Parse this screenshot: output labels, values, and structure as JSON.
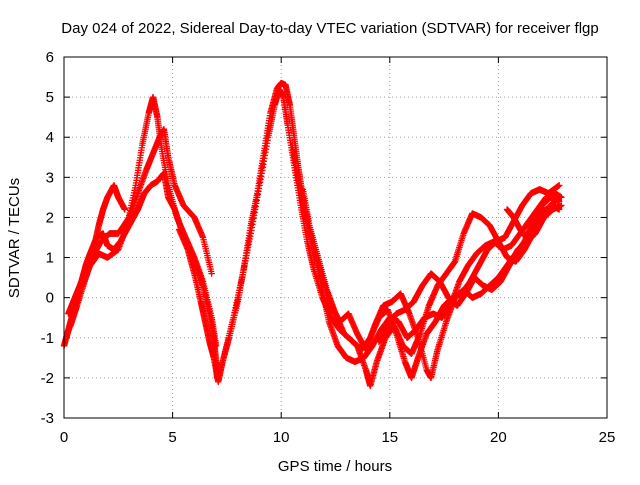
{
  "chart_data": {
    "type": "scatter",
    "title": "Day 024 of 2022, Sidereal Day-to-day VTEC variation (SDTVAR) for receiver flgp",
    "xlabel": "GPS time / hours",
    "ylabel": "SDTVAR / TECUs",
    "xlim": [
      0,
      25
    ],
    "ylim": [
      -3,
      6
    ],
    "xticks": [
      0,
      5,
      10,
      15,
      20,
      25
    ],
    "yticks": [
      -3,
      -2,
      -1,
      0,
      1,
      2,
      3,
      4,
      5,
      6
    ],
    "xtick_labels": [
      "0",
      "5",
      "10",
      "15",
      "20",
      "25"
    ],
    "ytick_labels": [
      "-3",
      "-2",
      "-1",
      "0",
      "1",
      "2",
      "3",
      "4",
      "5",
      "6"
    ],
    "grid": true,
    "marker": "+",
    "legend": "none",
    "series": [
      {
        "name": "satellite tracks",
        "color": "#ff0000",
        "tracks": [
          [
            [
              0.0,
              -1.2
            ],
            [
              0.2,
              -0.8
            ],
            [
              0.4,
              -0.4
            ],
            [
              0.6,
              0.0
            ],
            [
              0.8,
              0.4
            ],
            [
              1.0,
              0.8
            ],
            [
              1.2,
              1.1
            ],
            [
              1.5,
              1.5
            ],
            [
              1.8,
              1.6
            ],
            [
              2.0,
              1.3
            ],
            [
              2.3,
              1.2
            ],
            [
              2.6,
              1.4
            ],
            [
              3.0,
              1.8
            ],
            [
              3.4,
              2.2
            ],
            [
              3.7,
              2.6
            ],
            [
              4.0,
              2.8
            ],
            [
              4.3,
              2.9
            ],
            [
              4.6,
              3.1
            ],
            [
              4.8,
              2.5
            ],
            [
              5.1,
              2.2
            ],
            [
              5.4,
              1.7
            ],
            [
              5.8,
              1.2
            ],
            [
              6.1,
              0.8
            ],
            [
              6.4,
              0.3
            ],
            [
              6.7,
              -0.4
            ],
            [
              6.9,
              -1.0
            ],
            [
              7.0,
              -1.6
            ],
            [
              7.05,
              -2.0
            ]
          ],
          [
            [
              0.2,
              -0.4
            ],
            [
              0.5,
              0.0
            ],
            [
              0.8,
              0.4
            ],
            [
              1.1,
              0.9
            ],
            [
              1.4,
              1.3
            ],
            [
              1.6,
              1.8
            ],
            [
              1.8,
              2.2
            ],
            [
              2.0,
              2.5
            ],
            [
              2.3,
              2.8
            ],
            [
              2.5,
              2.5
            ],
            [
              2.8,
              2.2
            ]
          ],
          [
            [
              0.3,
              -0.7
            ],
            [
              0.6,
              -0.2
            ],
            [
              1.0,
              0.5
            ],
            [
              1.3,
              1.0
            ],
            [
              1.7,
              1.4
            ],
            [
              2.1,
              1.6
            ],
            [
              2.5,
              1.6
            ],
            [
              3.0,
              2.0
            ],
            [
              3.4,
              2.6
            ],
            [
              3.8,
              3.2
            ],
            [
              4.1,
              3.6
            ],
            [
              4.4,
              4.0
            ],
            [
              4.6,
              4.2
            ],
            [
              4.8,
              3.5
            ],
            [
              5.1,
              2.8
            ],
            [
              5.5,
              2.3
            ],
            [
              6.0,
              2.0
            ],
            [
              6.4,
              1.5
            ],
            [
              6.8,
              0.6
            ]
          ],
          [
            [
              0.1,
              -1.0
            ],
            [
              0.4,
              -0.5
            ],
            [
              0.8,
              0.2
            ],
            [
              1.2,
              0.8
            ],
            [
              1.6,
              1.1
            ],
            [
              2.0,
              1.0
            ],
            [
              2.5,
              1.2
            ],
            [
              2.9,
              1.8
            ],
            [
              3.3,
              2.8
            ],
            [
              3.6,
              3.8
            ],
            [
              3.9,
              4.6
            ],
            [
              4.1,
              5.0
            ],
            [
              4.3,
              4.5
            ],
            [
              4.5,
              3.7
            ],
            [
              4.8,
              2.8
            ],
            [
              5.2,
              2.0
            ],
            [
              5.6,
              1.5
            ],
            [
              6.0,
              1.0
            ],
            [
              6.4,
              0.4
            ],
            [
              6.8,
              -0.5
            ],
            [
              7.0,
              -1.2
            ]
          ],
          [
            [
              5.3,
              1.7
            ],
            [
              5.7,
              1.2
            ],
            [
              6.0,
              0.6
            ],
            [
              6.3,
              -0.1
            ],
            [
              6.5,
              -0.6
            ],
            [
              6.7,
              -1.1
            ],
            [
              6.9,
              -1.5
            ],
            [
              7.1,
              -2.1
            ],
            [
              7.3,
              -1.6
            ],
            [
              7.6,
              -1.0
            ],
            [
              8.0,
              -0.1
            ],
            [
              8.3,
              0.8
            ],
            [
              8.6,
              1.8
            ],
            [
              8.9,
              2.6
            ],
            [
              9.2,
              3.6
            ],
            [
              9.5,
              4.6
            ],
            [
              9.8,
              5.2
            ],
            [
              10.0,
              5.35
            ],
            [
              10.2,
              5.3
            ],
            [
              10.4,
              4.8
            ],
            [
              10.6,
              4.0
            ],
            [
              10.8,
              3.2
            ],
            [
              11.0,
              2.5
            ],
            [
              11.3,
              1.7
            ],
            [
              11.6,
              1.0
            ],
            [
              11.9,
              0.2
            ],
            [
              12.2,
              -0.6
            ],
            [
              12.6,
              -1.2
            ],
            [
              13.0,
              -1.5
            ],
            [
              13.4,
              -1.6
            ],
            [
              13.8,
              -1.5
            ],
            [
              14.2,
              -1.2
            ],
            [
              14.6,
              -0.8
            ],
            [
              15.0,
              -0.5
            ],
            [
              15.4,
              -0.6
            ],
            [
              15.8,
              -1.0
            ],
            [
              16.2,
              -0.8
            ],
            [
              16.6,
              -0.5
            ],
            [
              17.0,
              -0.4
            ],
            [
              17.4,
              -0.5
            ],
            [
              17.8,
              -0.2
            ],
            [
              18.2,
              0.4
            ],
            [
              18.6,
              0.8
            ],
            [
              19.0,
              1.1
            ],
            [
              19.4,
              1.3
            ],
            [
              19.8,
              1.4
            ],
            [
              20.2,
              1.2
            ],
            [
              20.6,
              1.3
            ],
            [
              21.0,
              1.6
            ],
            [
              21.4,
              1.9
            ],
            [
              21.8,
              2.2
            ],
            [
              22.2,
              2.5
            ],
            [
              22.6,
              2.6
            ],
            [
              22.9,
              2.5
            ]
          ],
          [
            [
              7.4,
              -1.4
            ],
            [
              7.8,
              -0.5
            ],
            [
              8.2,
              0.5
            ],
            [
              8.6,
              1.6
            ],
            [
              9.0,
              2.8
            ],
            [
              9.4,
              4.0
            ],
            [
              9.7,
              4.8
            ],
            [
              9.9,
              5.2
            ],
            [
              10.1,
              5.0
            ],
            [
              10.3,
              4.3
            ],
            [
              10.6,
              3.3
            ],
            [
              10.9,
              2.3
            ],
            [
              11.2,
              1.4
            ],
            [
              11.5,
              0.7
            ],
            [
              11.9,
              0.0
            ],
            [
              12.3,
              -0.5
            ],
            [
              12.7,
              -0.8
            ],
            [
              13.1,
              -1.0
            ],
            [
              13.5,
              -1.2
            ],
            [
              13.9,
              -1.8
            ],
            [
              14.1,
              -2.2
            ],
            [
              14.4,
              -1.6
            ],
            [
              14.8,
              -1.0
            ],
            [
              15.2,
              -0.7
            ],
            [
              15.6,
              -1.2
            ],
            [
              16.0,
              -1.4
            ],
            [
              16.4,
              -0.9
            ],
            [
              16.8,
              -0.2
            ],
            [
              17.2,
              0.3
            ],
            [
              17.6,
              0.6
            ],
            [
              18.0,
              0.9
            ],
            [
              18.4,
              1.6
            ],
            [
              18.8,
              2.1
            ],
            [
              19.2,
              2.0
            ],
            [
              19.6,
              1.8
            ],
            [
              20.0,
              1.4
            ],
            [
              20.4,
              1.0
            ],
            [
              20.8,
              0.9
            ],
            [
              21.2,
              1.2
            ],
            [
              21.6,
              1.6
            ],
            [
              22.0,
              2.0
            ],
            [
              22.4,
              2.3
            ],
            [
              22.8,
              2.5
            ]
          ],
          [
            [
              10.5,
              3.8
            ],
            [
              10.8,
              2.9
            ],
            [
              11.1,
              2.0
            ],
            [
              11.5,
              1.2
            ],
            [
              11.9,
              0.5
            ],
            [
              12.3,
              -0.2
            ],
            [
              12.7,
              -0.6
            ],
            [
              13.1,
              -0.4
            ],
            [
              13.5,
              -0.9
            ],
            [
              13.9,
              -1.3
            ],
            [
              14.3,
              -0.7
            ],
            [
              14.7,
              -0.2
            ],
            [
              15.1,
              -0.1
            ],
            [
              15.5,
              0.1
            ],
            [
              15.9,
              -0.4
            ],
            [
              16.3,
              -1.0
            ],
            [
              16.7,
              -1.8
            ],
            [
              16.9,
              -2.0
            ],
            [
              17.2,
              -1.3
            ],
            [
              17.6,
              -0.6
            ],
            [
              18.0,
              0.0
            ],
            [
              18.4,
              0.2
            ],
            [
              18.8,
              0.0
            ],
            [
              19.2,
              0.1
            ],
            [
              19.6,
              0.3
            ],
            [
              20.0,
              0.5
            ],
            [
              20.4,
              0.8
            ],
            [
              20.8,
              1.1
            ],
            [
              21.2,
              1.4
            ],
            [
              21.6,
              1.9
            ],
            [
              22.0,
              2.3
            ],
            [
              22.4,
              2.5
            ],
            [
              22.8,
              2.4
            ]
          ],
          [
            [
              11.0,
              2.7
            ],
            [
              11.3,
              1.8
            ],
            [
              11.7,
              1.0
            ],
            [
              12.1,
              0.2
            ],
            [
              12.5,
              -0.4
            ],
            [
              12.9,
              -0.9
            ],
            [
              13.3,
              -1.1
            ],
            [
              13.7,
              -1.3
            ],
            [
              14.1,
              -1.0
            ],
            [
              14.5,
              -0.5
            ],
            [
              14.9,
              -0.3
            ],
            [
              15.3,
              -0.9
            ],
            [
              15.7,
              -1.6
            ],
            [
              16.0,
              -2.0
            ],
            [
              16.3,
              -1.5
            ],
            [
              16.7,
              -0.9
            ],
            [
              17.1,
              -0.6
            ],
            [
              17.5,
              -0.2
            ],
            [
              17.9,
              0.0
            ],
            [
              18.3,
              0.1
            ],
            [
              18.7,
              0.4
            ],
            [
              19.1,
              0.8
            ],
            [
              19.5,
              1.2
            ],
            [
              19.9,
              1.4
            ],
            [
              20.3,
              1.5
            ],
            [
              20.7,
              1.9
            ],
            [
              21.1,
              2.3
            ],
            [
              21.5,
              2.6
            ],
            [
              21.9,
              2.7
            ],
            [
              22.3,
              2.6
            ],
            [
              22.8,
              2.8
            ]
          ],
          [
            [
              14.5,
              -1.1
            ],
            [
              14.9,
              -0.7
            ],
            [
              15.3,
              -0.4
            ],
            [
              15.7,
              -0.3
            ],
            [
              16.1,
              -0.1
            ],
            [
              16.5,
              0.3
            ],
            [
              16.9,
              0.6
            ],
            [
              17.3,
              0.4
            ],
            [
              17.7,
              0.0
            ],
            [
              18.1,
              -0.2
            ],
            [
              18.5,
              0.1
            ],
            [
              18.9,
              0.5
            ],
            [
              19.3,
              0.3
            ],
            [
              19.7,
              0.2
            ],
            [
              20.1,
              0.4
            ],
            [
              20.5,
              0.8
            ],
            [
              20.9,
              1.2
            ],
            [
              21.3,
              1.4
            ],
            [
              21.7,
              1.6
            ],
            [
              22.1,
              2.0
            ],
            [
              22.5,
              2.2
            ],
            [
              22.9,
              2.3
            ]
          ],
          [
            [
              20.4,
              2.2
            ],
            [
              20.7,
              2.0
            ],
            [
              21.0,
              1.7
            ],
            [
              21.3,
              1.5
            ],
            [
              21.6,
              1.8
            ],
            [
              21.9,
              2.1
            ],
            [
              22.2,
              2.2
            ],
            [
              22.5,
              2.3
            ],
            [
              22.8,
              2.2
            ]
          ]
        ]
      }
    ]
  }
}
